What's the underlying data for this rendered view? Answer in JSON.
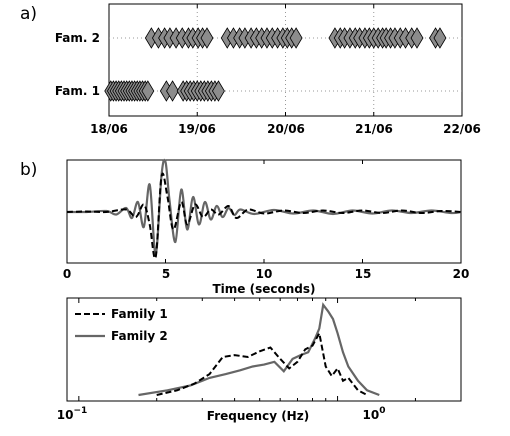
{
  "chart_data": [
    {
      "panel": "a)",
      "type": "scatter",
      "marker": "diamond",
      "marker_color": "#8c8c8c",
      "x_ticks": [
        "18/06",
        "19/06",
        "20/06",
        "21/06",
        "22/06"
      ],
      "y_ticks": [
        "Fam. 1",
        "Fam. 2"
      ],
      "xlim": [
        0,
        4
      ],
      "grid": true,
      "series": [
        {
          "name": "Fam. 1",
          "row": 1,
          "x": [
            0.02,
            0.05,
            0.08,
            0.11,
            0.14,
            0.17,
            0.2,
            0.23,
            0.26,
            0.29,
            0.32,
            0.35,
            0.38,
            0.41,
            0.44,
            0.65,
            0.72,
            0.84,
            0.88,
            0.92,
            0.96,
            1.0,
            1.04,
            1.08,
            1.12,
            1.16,
            1.2,
            1.24
          ]
        },
        {
          "name": "Fam. 2",
          "row": 2,
          "x": [
            0.48,
            0.56,
            0.63,
            0.69,
            0.76,
            0.83,
            0.9,
            0.95,
            1.01,
            1.06,
            1.11,
            1.34,
            1.41,
            1.48,
            1.54,
            1.61,
            1.67,
            1.73,
            1.79,
            1.85,
            1.91,
            1.97,
            2.02,
            2.07,
            2.12,
            2.56,
            2.62,
            2.67,
            2.73,
            2.79,
            2.84,
            2.9,
            2.95,
            3.0,
            3.05,
            3.1,
            3.14,
            3.19,
            3.24,
            3.3,
            3.36,
            3.43,
            3.49,
            3.7,
            3.75
          ]
        }
      ]
    },
    {
      "panel": "b)",
      "type": "line",
      "xlabel": "Time (seconds)",
      "xlim": [
        0,
        20
      ],
      "x_ticks": [
        0,
        5,
        10,
        15,
        20
      ],
      "series": [
        {
          "name": "Family 1",
          "style": "dashed",
          "color": "#000000",
          "x": [
            0,
            1,
            2,
            3,
            3.5,
            3.9,
            4.2,
            4.5,
            4.8,
            5.1,
            5.4,
            5.8,
            6.1,
            6.5,
            6.9,
            7.3,
            7.7,
            8.2,
            8.6,
            9.2,
            10,
            11,
            12,
            13,
            14,
            15,
            16,
            17,
            18,
            19,
            20
          ],
          "y": [
            0,
            0.01,
            0,
            0.05,
            -0.1,
            0.15,
            -0.25,
            -0.9,
            0.72,
            0.3,
            -0.35,
            0.2,
            -0.25,
            0.15,
            -0.1,
            0.05,
            -0.05,
            0.12,
            -0.12,
            0.05,
            -0.03,
            0.03,
            -0.02,
            0.03,
            -0.02,
            0.03,
            -0.02,
            0.03,
            -0.02,
            0.02,
            0
          ]
        },
        {
          "name": "Family 2",
          "style": "solid",
          "color": "#666666",
          "x": [
            0,
            1,
            2,
            2.5,
            3,
            3.3,
            3.6,
            3.9,
            4.2,
            4.5,
            4.8,
            5,
            5.2,
            5.5,
            5.8,
            6.1,
            6.4,
            6.7,
            7,
            7.3,
            7.6,
            7.9,
            8.2,
            8.5,
            8.8,
            9.5,
            10.5,
            11.5,
            12.5,
            13.5,
            14.5,
            15.5,
            16.5,
            17.5,
            18.5,
            19.5,
            20
          ],
          "y": [
            0,
            0,
            0.02,
            -0.05,
            0.08,
            -0.12,
            0.2,
            -0.3,
            0.55,
            -0.85,
            0.75,
            1.0,
            0.25,
            -0.6,
            0.45,
            -0.35,
            0.3,
            -0.25,
            0.2,
            -0.15,
            0.12,
            -0.1,
            0.08,
            -0.06,
            0.05,
            -0.04,
            0.04,
            -0.03,
            0.03,
            -0.04,
            0.03,
            -0.03,
            0.03,
            -0.02,
            0.03,
            -0.02,
            0
          ]
        }
      ]
    },
    {
      "type": "line",
      "xlabel": "Frequency (Hz)",
      "xscale": "log",
      "xlim": [
        0.09,
        3.0
      ],
      "x_ticks": [
        "10^-1",
        "10^0"
      ],
      "legend": "top-left",
      "series": [
        {
          "name": "Family 1",
          "style": "dashed",
          "color": "#000000",
          "x": [
            0.2,
            0.24,
            0.28,
            0.32,
            0.36,
            0.4,
            0.45,
            0.5,
            0.55,
            0.6,
            0.65,
            0.7,
            0.75,
            0.8,
            0.85,
            0.9,
            0.95,
            1.0,
            1.05,
            1.1,
            1.2,
            1.3
          ],
          "y": [
            0,
            0.05,
            0.12,
            0.22,
            0.4,
            0.42,
            0.4,
            0.46,
            0.5,
            0.38,
            0.28,
            0.35,
            0.48,
            0.52,
            0.65,
            0.3,
            0.2,
            0.28,
            0.15,
            0.18,
            0.05,
            0
          ]
        },
        {
          "name": "Family 2",
          "style": "solid",
          "color": "#666666",
          "x": [
            0.17,
            0.22,
            0.27,
            0.32,
            0.37,
            0.42,
            0.47,
            0.52,
            0.57,
            0.62,
            0.67,
            0.72,
            0.77,
            0.82,
            0.85,
            0.88,
            0.92,
            0.96,
            1.0,
            1.05,
            1.1,
            1.2,
            1.3,
            1.45
          ],
          "y": [
            0,
            0.05,
            0.1,
            0.18,
            0.22,
            0.26,
            0.3,
            0.32,
            0.35,
            0.25,
            0.38,
            0.42,
            0.45,
            0.6,
            0.7,
            0.95,
            0.88,
            0.8,
            0.65,
            0.45,
            0.3,
            0.15,
            0.05,
            0
          ]
        }
      ]
    }
  ]
}
